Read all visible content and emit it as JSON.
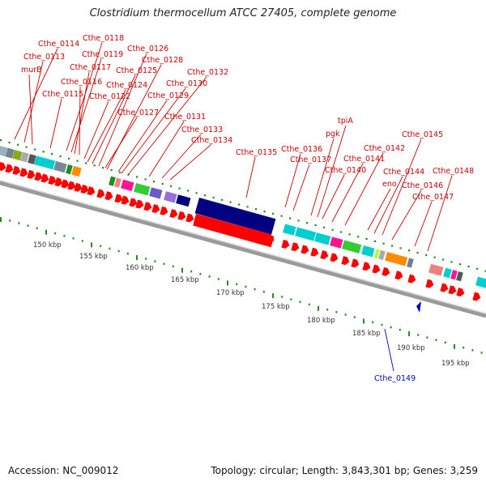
{
  "title": "Clostridium thermocellum ATCC 27405, complete genome",
  "footer": {
    "accession": "Accession: NC_009012",
    "summary": "Topology: circular; Length: 3,843,301 bp; Genes: 3,259"
  },
  "scale_labels": [
    "150 kbp",
    "155 kbp",
    "160 kbp",
    "165 kbp",
    "170 kbp",
    "175 kbp",
    "180 kbp",
    "185 kbp",
    "190 kbp",
    "195 kbp"
  ],
  "gene_labels": [
    "Cthe_0114",
    "Cthe_0118",
    "Cthe_0113",
    "Cthe_0119",
    "Cthe_0126",
    "murB",
    "Cthe_0117",
    "Cthe_0128",
    "Cthe_0125",
    "Cthe_0132",
    "Cthe_0116",
    "Cthe_0124",
    "Cthe_0130",
    "Cthe_0115",
    "Cthe_0122",
    "Cthe_0129",
    "Cthe_0127",
    "Cthe_0131",
    "Cthe_0133",
    "Cthe_0134",
    "Cthe_0135",
    "tpiA",
    "pgk",
    "Cthe_0145",
    "Cthe_0136",
    "Cthe_0142",
    "Cthe_0137",
    "Cthe_0141",
    "Cthe_0140",
    "Cthe_0148",
    "Cthe_0144",
    "eno",
    "Cthe_0146",
    "Cthe_0147",
    "Cthe_0149"
  ],
  "colors": {
    "label_red": "#cc0000",
    "label_blue": "#0000cc",
    "gene_red": "#ff0000",
    "backbone": "#9a9a9a",
    "tick_green": "#228b22"
  }
}
